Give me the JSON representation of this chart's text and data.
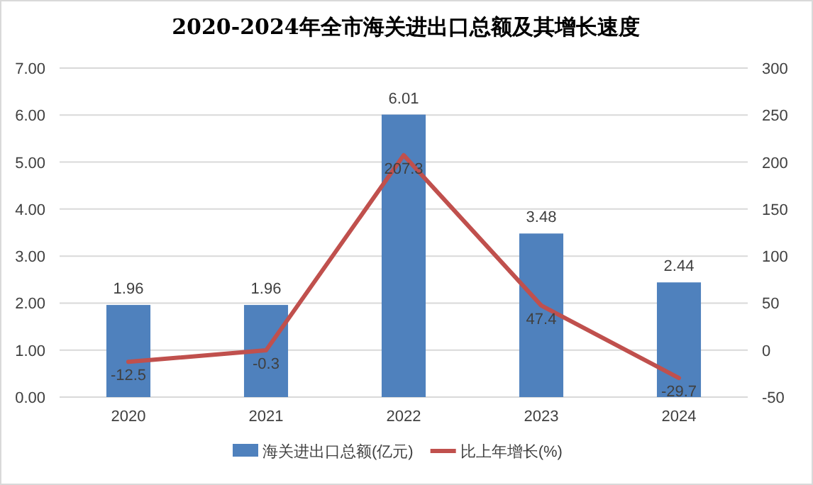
{
  "chart_data": {
    "type": "bar",
    "title": "2020-2024年全市海关进出口总额及其增长速度",
    "categories": [
      "2020",
      "2021",
      "2022",
      "2023",
      "2024"
    ],
    "series": [
      {
        "name": "海关进出口总额(亿元)",
        "color": "#4f81bd",
        "values": [
          1.96,
          1.96,
          6.01,
          3.48,
          2.44
        ]
      },
      {
        "name": "比上年增长(%)",
        "type": "line",
        "axis": "y2",
        "color": "#c0504d",
        "values": [
          -12.5,
          -0.3,
          207.3,
          47.4,
          -29.7
        ]
      }
    ],
    "ylim": [
      0,
      7
    ],
    "yticks": [
      {
        "value": 0,
        "label": "0.00"
      },
      {
        "value": 1,
        "label": "1.00"
      },
      {
        "value": 2,
        "label": "2.00"
      },
      {
        "value": 3,
        "label": "3.00"
      },
      {
        "value": 4,
        "label": "4.00"
      },
      {
        "value": 5,
        "label": "5.00"
      },
      {
        "value": 6,
        "label": "6.00"
      },
      {
        "value": 7,
        "label": "7.00"
      }
    ],
    "y2lim": [
      -50,
      300
    ],
    "y2ticks": [
      -50,
      0,
      50,
      100,
      150,
      200,
      250,
      300
    ],
    "grid": "y",
    "legend": "bottom",
    "data_labels": true,
    "marker": "none",
    "line_style": "solid"
  }
}
